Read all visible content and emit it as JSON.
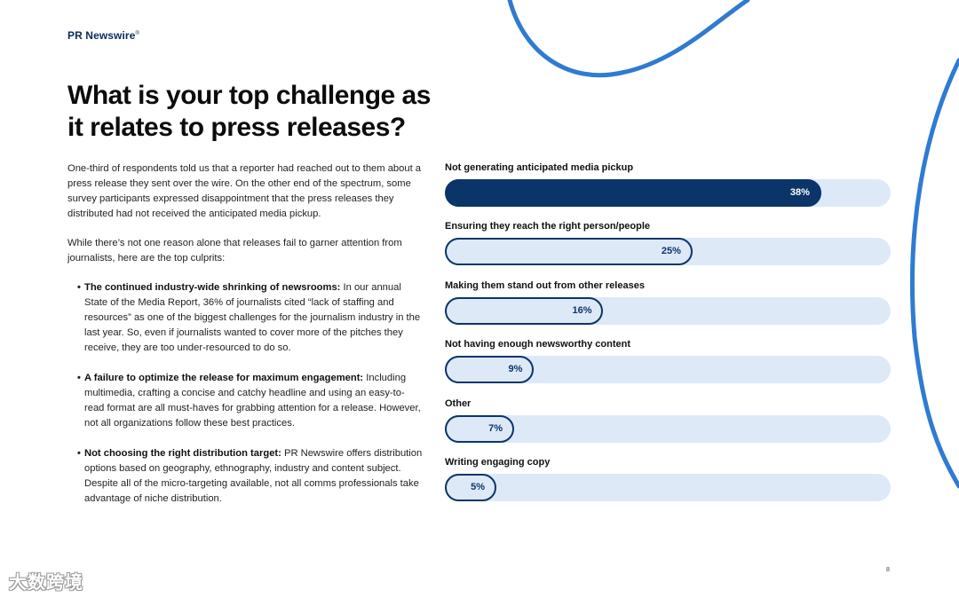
{
  "header": {
    "brand": "PR Newswire",
    "brand_tm": "®"
  },
  "title": "What is your top challenge as it relates to press releases?",
  "intro": [
    "One-third of respondents told us that a reporter had reached out to them about a press release they sent over the wire. On the other end of the spectrum, some survey participants expressed disappointment that the press releases they distributed had not received the anticipated media pickup.",
    "While there’s not one reason alone that releases fail to garner attention from journalists, here are the top culprits:"
  ],
  "bullets": [
    {
      "heading": "The continued industry-wide shrinking of newsrooms:",
      "text": " In our annual State of the Media Report, 36% of journalists cited “lack of staffing and resources” as one of the biggest challenges for the journalism industry in the last year. So, even if journalists wanted to cover more of the pitches they receive, they are too under-resourced to do so."
    },
    {
      "heading": "A failure to optimize the release for maximum engagement:",
      "text": " Including multimedia, crafting a concise and catchy headline and using an easy-to-read format are all must-haves for grabbing attention for a release. However, not all organizations follow these best practices."
    },
    {
      "heading": "Not choosing the right distribution target:",
      "text": " PR Newswire offers distribution options based on geography, ethnography, industry and content subject. Despite all of the micro-targeting available, not all comms professionals take advantage of niche distribution."
    }
  ],
  "chart_data": {
    "type": "bar",
    "orientation": "horizontal",
    "categories": [
      "Not generating anticipated media pickup",
      "Ensuring they reach the right person/people",
      "Making them stand out from other releases",
      "Not having enough newsworthy content",
      "Other",
      "Writing engaging copy"
    ],
    "values": [
      38,
      25,
      16,
      9,
      7,
      5
    ],
    "value_labels": [
      "38%",
      "25%",
      "16%",
      "9%",
      "7%",
      "5%"
    ],
    "unit": "%",
    "xlim": [
      0,
      45
    ],
    "grid": false,
    "legend": "none",
    "colors": {
      "highlight": "#0b3569",
      "track": "#dde9f7",
      "outline": "#0b3569"
    }
  },
  "page_number": "8",
  "watermark": "大数跨境",
  "colors": {
    "brand": "#0a2a5c",
    "accent_curve": "#2f7bd0"
  }
}
